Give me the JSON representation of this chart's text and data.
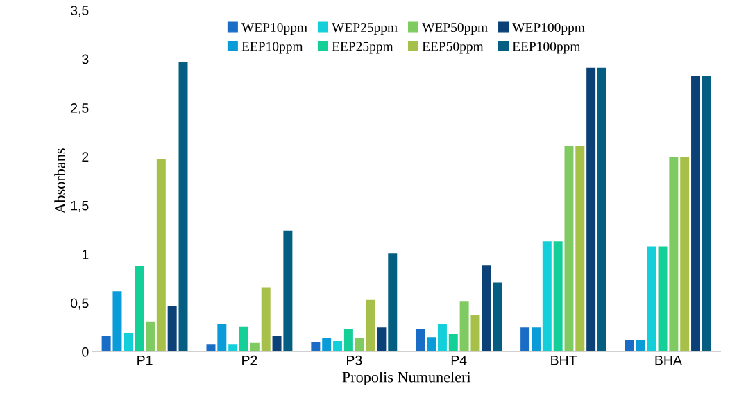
{
  "chart_data": {
    "type": "bar",
    "xlabel": "Propolis Numuneleri",
    "ylabel": "Absorbans",
    "categories": [
      "P1",
      "P2",
      "P3",
      "P4",
      "BHT",
      "BHA"
    ],
    "series": [
      {
        "name": "WEP10ppm",
        "color": "#1a6dc6",
        "values": [
          0.16,
          0.08,
          0.1,
          0.23,
          0.25,
          0.12
        ]
      },
      {
        "name": "EEP10ppm",
        "color": "#0a9cd8",
        "values": [
          0.62,
          0.28,
          0.14,
          0.15,
          0.25,
          0.12
        ]
      },
      {
        "name": "WEP25ppm",
        "color": "#12cfd9",
        "values": [
          0.19,
          0.08,
          0.11,
          0.28,
          1.13,
          1.08
        ]
      },
      {
        "name": "EEP25ppm",
        "color": "#14cf98",
        "values": [
          0.88,
          0.26,
          0.23,
          0.18,
          1.13,
          1.08
        ]
      },
      {
        "name": "WEP50ppm",
        "color": "#7fcb62",
        "values": [
          0.31,
          0.09,
          0.14,
          0.52,
          2.11,
          2.0
        ]
      },
      {
        "name": "EEP50ppm",
        "color": "#a6c04a",
        "values": [
          1.97,
          0.66,
          0.53,
          0.38,
          2.11,
          2.0
        ]
      },
      {
        "name": "WEP100ppm",
        "color": "#0c4177",
        "values": [
          0.47,
          0.16,
          0.25,
          0.89,
          2.91,
          2.83
        ]
      },
      {
        "name": "EEP100ppm",
        "color": "#035e82",
        "values": [
          2.97,
          1.24,
          1.01,
          0.71,
          2.91,
          2.83
        ]
      }
    ],
    "ylim": [
      0,
      3.5
    ],
    "yticks": [
      0,
      {
        "value": 0.5,
        "label": "0,5"
      },
      1,
      {
        "value": 1.5,
        "label": "1,5"
      },
      2,
      {
        "value": 2.5,
        "label": "2,5"
      },
      3,
      {
        "value": 3.5,
        "label": "3,5"
      }
    ],
    "grid": false,
    "legend": "top"
  }
}
